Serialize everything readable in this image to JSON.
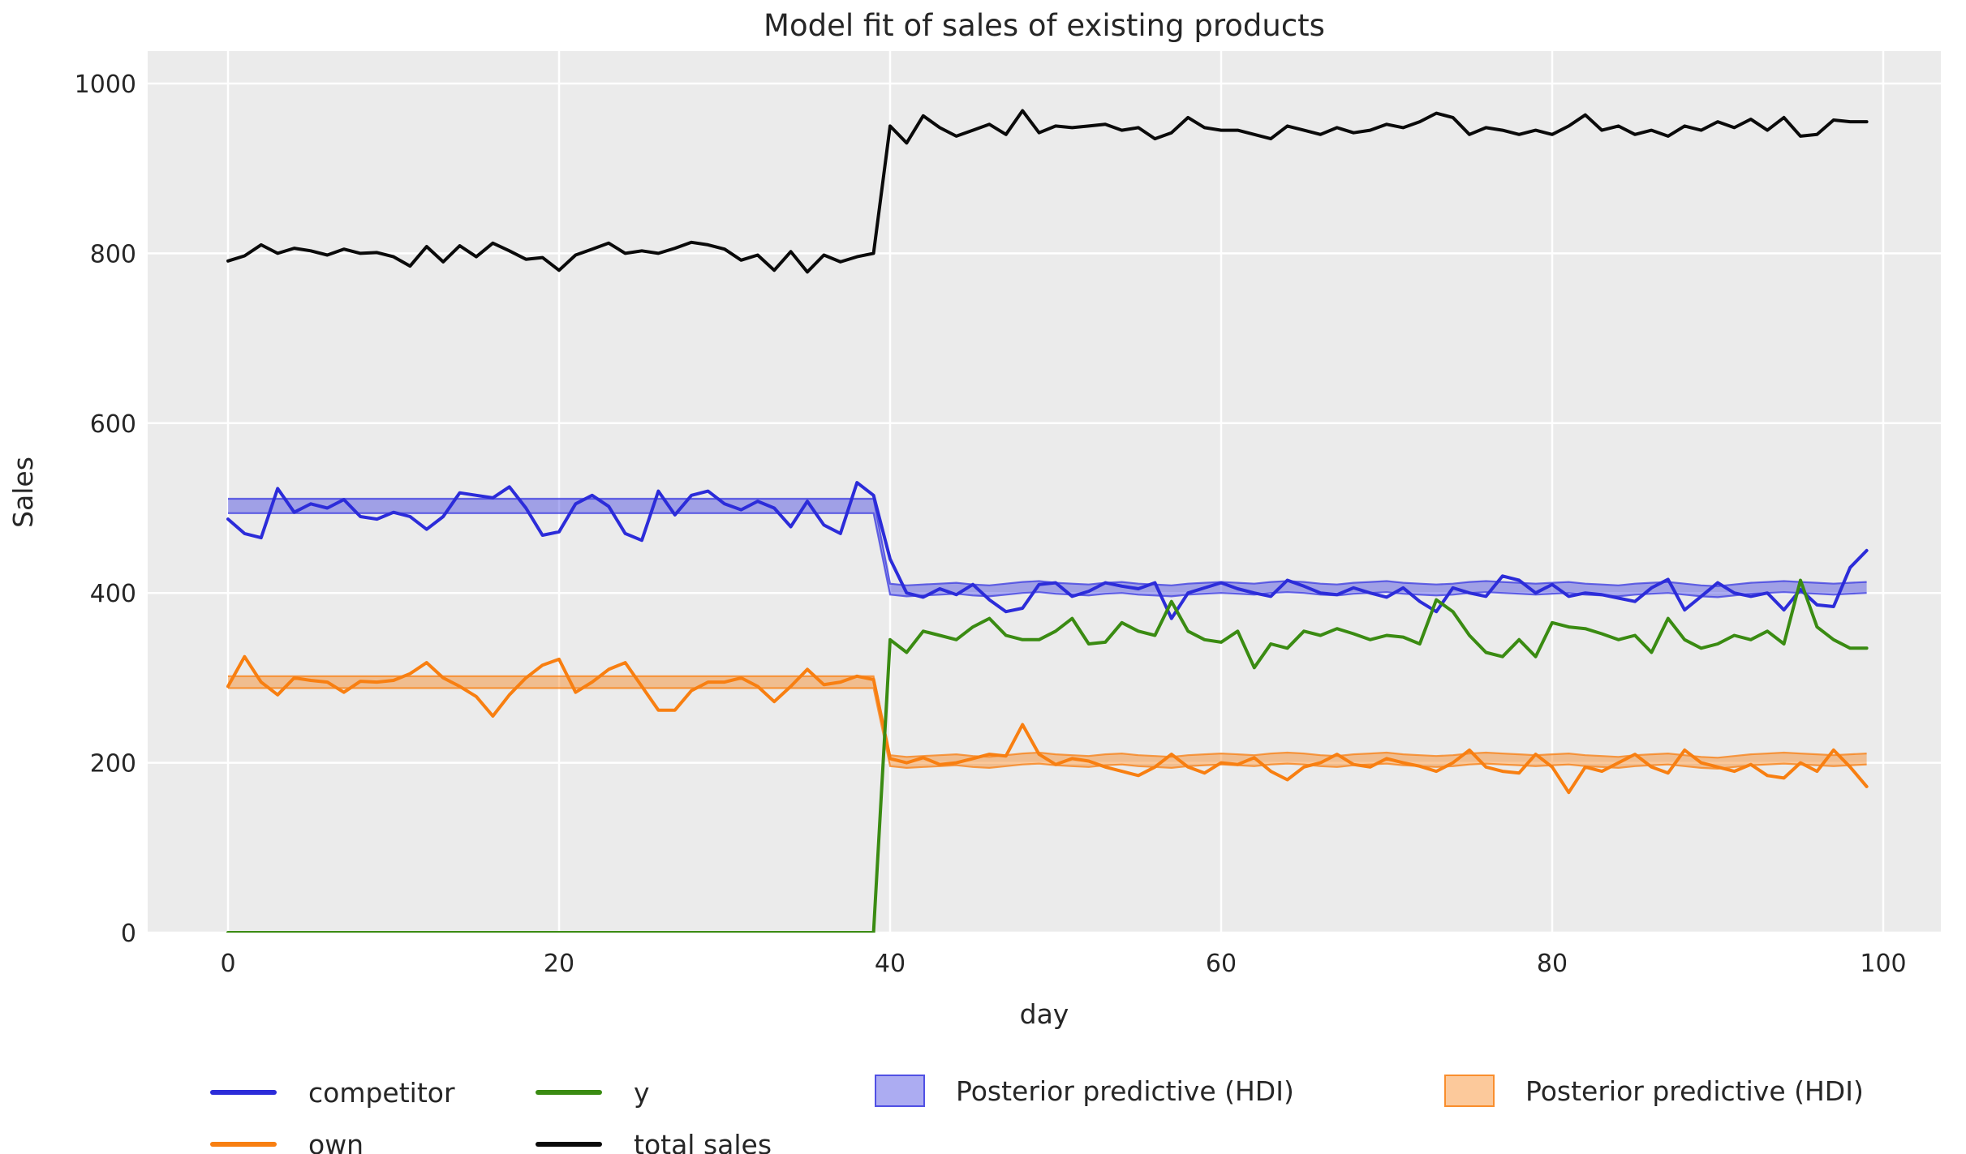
{
  "title": "Model fit of sales of existing products",
  "axes": {
    "xlabel": "day",
    "ylabel": "Sales"
  },
  "style": {
    "plot_background": "#ebebeb",
    "gridline_color": "#ffffff",
    "text_color": "#262626",
    "figure_background": "#ffffff"
  },
  "legend": {
    "items": [
      {
        "label": "competitor",
        "swatch": "line",
        "color": "#2c2cd9"
      },
      {
        "label": "own",
        "swatch": "line",
        "color": "#f87f11"
      },
      {
        "label": "y",
        "swatch": "line",
        "color": "#3a8b12"
      },
      {
        "label": "total sales",
        "swatch": "line",
        "color": "#0a0a0a"
      },
      {
        "label": "Posterior predictive (HDI)",
        "swatch": "patch",
        "color": "#3a3ae0",
        "fill_opacity": 0.42
      },
      {
        "label": "Posterior predictive (HDI)",
        "swatch": "patch",
        "color": "#f87f11",
        "fill_opacity": 0.42
      }
    ]
  },
  "chart_data": {
    "type": "line",
    "title": "Model fit of sales of existing products",
    "xlabel": "day",
    "ylabel": "Sales",
    "x_ticks": [
      0,
      20,
      40,
      60,
      80,
      100
    ],
    "y_ticks": [
      0,
      200,
      400,
      600,
      800,
      1000
    ],
    "xlim": [
      -5,
      103.6
    ],
    "ylim": [
      0,
      1040
    ],
    "grid": true,
    "legend_position": "below",
    "x": [
      0,
      1,
      2,
      3,
      4,
      5,
      6,
      7,
      8,
      9,
      10,
      11,
      12,
      13,
      14,
      15,
      16,
      17,
      18,
      19,
      20,
      21,
      22,
      23,
      24,
      25,
      26,
      27,
      28,
      29,
      30,
      31,
      32,
      33,
      34,
      35,
      36,
      37,
      38,
      39,
      40,
      41,
      42,
      43,
      44,
      45,
      46,
      47,
      48,
      49,
      50,
      51,
      52,
      53,
      54,
      55,
      56,
      57,
      58,
      59,
      60,
      61,
      62,
      63,
      64,
      65,
      66,
      67,
      68,
      69,
      70,
      71,
      72,
      73,
      74,
      75,
      76,
      77,
      78,
      79,
      80,
      81,
      82,
      83,
      84,
      85,
      86,
      87,
      88,
      89,
      90,
      91,
      92,
      93,
      94,
      95,
      96,
      97,
      98,
      99
    ],
    "series": [
      {
        "name": "competitor",
        "color": "#2c2cd9",
        "values": [
          487,
          470,
          465,
          523,
          495,
          505,
          500,
          510,
          490,
          487,
          495,
          490,
          475,
          490,
          518,
          515,
          512,
          525,
          500,
          468,
          472,
          505,
          515,
          502,
          470,
          462,
          520,
          492,
          515,
          520,
          505,
          498,
          508,
          500,
          478,
          508,
          480,
          470,
          530,
          515,
          440,
          400,
          395,
          405,
          398,
          410,
          392,
          378,
          382,
          410,
          412,
          396,
          402,
          412,
          408,
          405,
          412,
          370,
          400,
          406,
          412,
          405,
          400,
          396,
          415,
          408,
          400,
          398,
          406,
          400,
          395,
          406,
          390,
          378,
          406,
          400,
          396,
          420,
          415,
          400,
          410,
          396,
          400,
          398,
          394,
          390,
          406,
          416,
          380,
          396,
          412,
          400,
          396,
          400,
          380,
          404,
          386,
          384,
          430,
          450
        ]
      },
      {
        "name": "own",
        "color": "#f87f11",
        "values": [
          290,
          325,
          295,
          280,
          300,
          297,
          295,
          283,
          296,
          295,
          297,
          305,
          318,
          300,
          290,
          278,
          255,
          280,
          300,
          315,
          322,
          283,
          295,
          310,
          318,
          290,
          262,
          262,
          285,
          295,
          295,
          300,
          290,
          272,
          290,
          310,
          292,
          295,
          302,
          298,
          205,
          200,
          206,
          198,
          200,
          205,
          210,
          208,
          245,
          210,
          198,
          205,
          202,
          195,
          190,
          185,
          195,
          210,
          195,
          188,
          200,
          198,
          206,
          190,
          180,
          195,
          200,
          210,
          198,
          195,
          205,
          200,
          196,
          190,
          200,
          215,
          195,
          190,
          188,
          210,
          195,
          165,
          195,
          190,
          200,
          210,
          195,
          188,
          215,
          200,
          195,
          190,
          198,
          185,
          182,
          200,
          190,
          215,
          195,
          172
        ]
      },
      {
        "name": "y",
        "color": "#3a8b12",
        "values": [
          0,
          0,
          0,
          0,
          0,
          0,
          0,
          0,
          0,
          0,
          0,
          0,
          0,
          0,
          0,
          0,
          0,
          0,
          0,
          0,
          0,
          0,
          0,
          0,
          0,
          0,
          0,
          0,
          0,
          0,
          0,
          0,
          0,
          0,
          0,
          0,
          0,
          0,
          0,
          0,
          345,
          330,
          355,
          350,
          345,
          360,
          370,
          350,
          345,
          345,
          355,
          370,
          340,
          342,
          365,
          355,
          350,
          390,
          355,
          345,
          342,
          355,
          312,
          340,
          335,
          355,
          350,
          358,
          352,
          345,
          350,
          348,
          340,
          392,
          378,
          350,
          330,
          325,
          345,
          325,
          365,
          360,
          358,
          352,
          345,
          350,
          330,
          370,
          345,
          335,
          340,
          350,
          345,
          355,
          340,
          415,
          360,
          345,
          335,
          335
        ]
      },
      {
        "name": "total sales",
        "color": "#0a0a0a",
        "values": [
          791,
          797,
          810,
          800,
          806,
          803,
          798,
          805,
          800,
          801,
          796,
          785,
          808,
          790,
          809,
          796,
          812,
          803,
          793,
          795,
          780,
          798,
          805,
          812,
          800,
          803,
          800,
          806,
          813,
          810,
          805,
          792,
          798,
          780,
          802,
          778,
          798,
          790,
          796,
          800,
          950,
          930,
          962,
          948,
          938,
          945,
          952,
          940,
          968,
          942,
          950,
          948,
          950,
          952,
          945,
          948,
          935,
          942,
          960,
          948,
          945,
          945,
          940,
          935,
          950,
          945,
          940,
          948,
          942,
          945,
          952,
          948,
          955,
          965,
          960,
          940,
          948,
          945,
          940,
          945,
          940,
          950,
          963,
          945,
          950,
          940,
          945,
          938,
          950,
          945,
          955,
          948,
          958,
          945,
          960,
          938,
          940,
          957,
          955,
          955
        ]
      }
    ],
    "bands": [
      {
        "name": "Posterior predictive (HDI)",
        "series": "competitor",
        "color": "#3a3ae0",
        "fill_opacity": 0.42,
        "lo": [
          494,
          494,
          494,
          494,
          494,
          494,
          494,
          494,
          494,
          494,
          494,
          494,
          494,
          494,
          494,
          494,
          494,
          494,
          494,
          494,
          494,
          494,
          494,
          494,
          494,
          494,
          494,
          494,
          494,
          494,
          494,
          494,
          494,
          494,
          494,
          494,
          494,
          494,
          494,
          494,
          398,
          396,
          397,
          398,
          399,
          397,
          396,
          398,
          400,
          401,
          399,
          398,
          397,
          399,
          400,
          398,
          397,
          396,
          398,
          399,
          400,
          399,
          398,
          400,
          401,
          400,
          398,
          397,
          399,
          400,
          401,
          399,
          398,
          397,
          398,
          400,
          401,
          400,
          399,
          398,
          399,
          400,
          398,
          397,
          396,
          398,
          399,
          400,
          398,
          396,
          395,
          397,
          399,
          400,
          401,
          400,
          399,
          398,
          399,
          400
        ],
        "hi": [
          511,
          511,
          511,
          511,
          511,
          511,
          511,
          511,
          511,
          511,
          511,
          511,
          511,
          511,
          511,
          511,
          511,
          511,
          511,
          511,
          511,
          511,
          511,
          511,
          511,
          511,
          511,
          511,
          511,
          511,
          511,
          511,
          511,
          511,
          511,
          511,
          511,
          511,
          511,
          511,
          411,
          409,
          410,
          411,
          412,
          410,
          409,
          411,
          413,
          414,
          412,
          411,
          410,
          412,
          413,
          411,
          410,
          409,
          411,
          412,
          413,
          412,
          411,
          413,
          414,
          413,
          411,
          410,
          412,
          413,
          414,
          412,
          411,
          410,
          411,
          413,
          414,
          413,
          412,
          411,
          412,
          413,
          411,
          410,
          409,
          411,
          412,
          413,
          411,
          409,
          408,
          410,
          412,
          413,
          414,
          413,
          412,
          411,
          412,
          413
        ]
      },
      {
        "name": "Posterior predictive (HDI)",
        "series": "own",
        "color": "#f87f11",
        "fill_opacity": 0.42,
        "lo": [
          288,
          288,
          288,
          288,
          288,
          288,
          288,
          288,
          288,
          288,
          288,
          288,
          288,
          288,
          288,
          288,
          288,
          288,
          288,
          288,
          288,
          288,
          288,
          288,
          288,
          288,
          288,
          288,
          288,
          288,
          288,
          288,
          288,
          288,
          288,
          288,
          288,
          288,
          288,
          288,
          196,
          194,
          195,
          196,
          197,
          195,
          194,
          196,
          198,
          199,
          197,
          196,
          195,
          197,
          198,
          196,
          195,
          194,
          196,
          197,
          198,
          197,
          196,
          198,
          199,
          198,
          196,
          195,
          197,
          198,
          199,
          197,
          196,
          195,
          196,
          198,
          199,
          198,
          197,
          196,
          197,
          198,
          196,
          195,
          194,
          196,
          197,
          198,
          196,
          194,
          193,
          195,
          197,
          198,
          199,
          198,
          197,
          196,
          197,
          198
        ],
        "hi": [
          302,
          302,
          302,
          302,
          302,
          302,
          302,
          302,
          302,
          302,
          302,
          302,
          302,
          302,
          302,
          302,
          302,
          302,
          302,
          302,
          302,
          302,
          302,
          302,
          302,
          302,
          302,
          302,
          302,
          302,
          302,
          302,
          302,
          302,
          302,
          302,
          302,
          302,
          302,
          302,
          209,
          207,
          208,
          209,
          210,
          208,
          207,
          209,
          211,
          212,
          210,
          209,
          208,
          210,
          211,
          209,
          208,
          207,
          209,
          210,
          211,
          210,
          209,
          211,
          212,
          211,
          209,
          208,
          210,
          211,
          212,
          210,
          209,
          208,
          209,
          211,
          212,
          211,
          210,
          209,
          210,
          211,
          209,
          208,
          207,
          209,
          210,
          211,
          209,
          207,
          206,
          208,
          210,
          211,
          212,
          211,
          210,
          209,
          210,
          211
        ]
      }
    ]
  }
}
